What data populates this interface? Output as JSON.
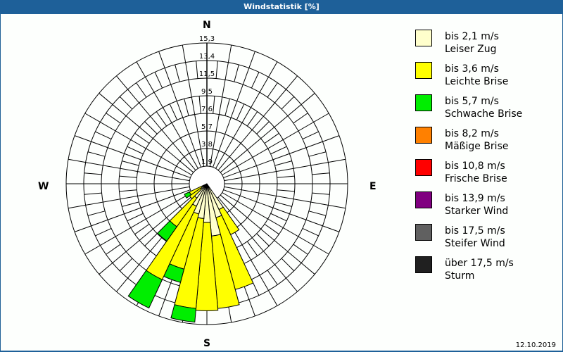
{
  "title": "Windstatistik [%]",
  "directions": {
    "n": "N",
    "e": "E",
    "s": "S",
    "w": "W"
  },
  "ring_labels": [
    "1,9",
    "3,8",
    "5,7",
    "7,6",
    "9,5",
    "11,5",
    "13,4",
    "15,3"
  ],
  "legend": [
    {
      "speed": "bis 2,1 m/s",
      "name": "Leiser Zug",
      "color": "#ffffcc"
    },
    {
      "speed": "bis 3,6 m/s",
      "name": "Leichte Brise",
      "color": "#ffff00"
    },
    {
      "speed": "bis 5,7 m/s",
      "name": "Schwache Brise",
      "color": "#00ee00"
    },
    {
      "speed": "bis 8,2 m/s",
      "name": "Mäßige Brise",
      "color": "#ff8000"
    },
    {
      "speed": "bis 10,8 m/s",
      "name": "Frische Brise",
      "color": "#ff0000"
    },
    {
      "speed": "bis 13,9 m/s",
      "name": "Starker Wind",
      "color": "#800080"
    },
    {
      "speed": "bis 17,5 m/s",
      "name": "Steifer Wind",
      "color": "#606060"
    },
    {
      "speed": "über 17,5 m/s",
      "name": "Sturm",
      "color": "#202020"
    }
  ],
  "date": "12.10.2019",
  "chart_data": {
    "type": "windrose",
    "title": "Windstatistik [%]",
    "rmax": 15.3,
    "ring_ticks": [
      1.9,
      3.8,
      5.7,
      7.6,
      9.5,
      11.5,
      13.4,
      15.3
    ],
    "sector_width_deg": 10,
    "categories": [
      "bis 2,1 m/s",
      "bis 3,6 m/s",
      "bis 5,7 m/s"
    ],
    "directions_deg": [
      150,
      160,
      170,
      180,
      190,
      200,
      210,
      220,
      230,
      240
    ],
    "series": [
      {
        "name": "bis 2,1 m/s",
        "color": "#ffffcc",
        "values": [
          3.1,
          3.8,
          5.7,
          4.2,
          3.8,
          3.4,
          2.7,
          1.9,
          0.8,
          0.6
        ]
      },
      {
        "name": "bis 3,6 m/s",
        "color": "#ffff00",
        "values": [
          3.0,
          8.1,
          7.9,
          9.6,
          9.8,
          6.2,
          8.8,
          3.8,
          1.5,
          1.5
        ]
      },
      {
        "name": "bis 5,7 m/s",
        "color": "#00ee00",
        "values": [
          0,
          0,
          0,
          0,
          1.5,
          1.5,
          3.4,
          1.9,
          0,
          0.6
        ]
      }
    ],
    "legend_position": "right"
  }
}
